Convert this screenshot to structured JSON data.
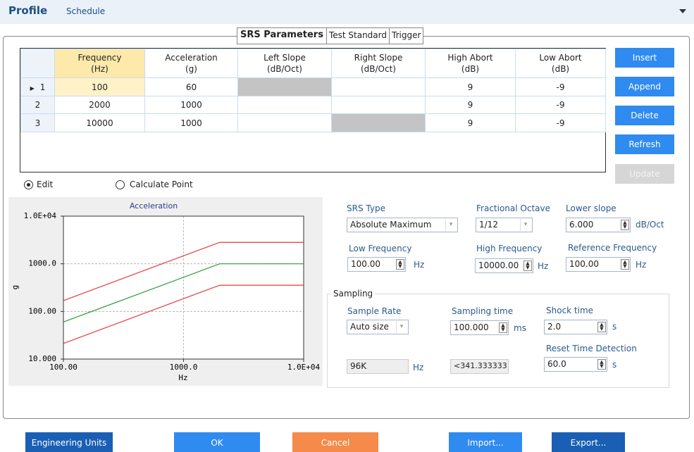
{
  "header": {
    "title": "Profile",
    "tab": "Schedule"
  },
  "tabs": [
    "SRS Parameters",
    "Test Standard",
    "Trigger"
  ],
  "table": {
    "columns": [
      {
        "name": "Frequency",
        "unit": "(Hz)"
      },
      {
        "name": "Acceleration",
        "unit": "(g)"
      },
      {
        "name": "Left Slope",
        "unit": "(dB/Oct)"
      },
      {
        "name": "Right Slope",
        "unit": "(dB/Oct)"
      },
      {
        "name": "High Abort",
        "unit": "(dB)"
      },
      {
        "name": "Low Abort",
        "unit": "(dB)"
      }
    ],
    "rows": [
      {
        "index": 1,
        "frequency": 100,
        "acceleration": 60,
        "high_abort": 9,
        "low_abort": -9
      },
      {
        "index": 2,
        "frequency": 2000,
        "acceleration": 1000,
        "high_abort": 9,
        "low_abort": -9
      },
      {
        "index": 3,
        "frequency": 10000,
        "acceleration": 1000,
        "high_abort": 9,
        "low_abort": -9
      }
    ]
  },
  "side_buttons": [
    "Insert",
    "Append",
    "Delete",
    "Refresh",
    "Update"
  ],
  "modes": [
    "Edit",
    "Calculate Point"
  ],
  "chart_data": {
    "type": "line",
    "title": "Acceleration",
    "x_label": "Hz",
    "y_label": "g",
    "log_x": true,
    "log_y": true,
    "grid": true,
    "x": [
      100,
      2000,
      10000
    ],
    "series": [
      {
        "color": "#e53935",
        "values": [
          169.2,
          2818.4,
          2818.4
        ]
      },
      {
        "color": "#2e9e3a",
        "values": [
          60,
          1000,
          1000
        ]
      },
      {
        "color": "#e53935",
        "values": [
          21.3,
          354.8,
          354.8
        ]
      }
    ],
    "xlim": [
      100,
      10000
    ],
    "ylim": [
      10,
      10000
    ],
    "xticks": [
      {
        "value": 100,
        "label": "100.00"
      },
      {
        "value": 1000,
        "label": "1000.0"
      },
      {
        "value": 10000,
        "label": "1.0E+04"
      }
    ],
    "yticks": [
      {
        "value": 10,
        "label": "10.000"
      },
      {
        "value": 100,
        "label": "100.00"
      },
      {
        "value": 1000,
        "label": "1000.0"
      },
      {
        "value": 10000,
        "label": "1.0E+04"
      }
    ]
  },
  "fields": {
    "srs_type": {
      "label": "SRS Type",
      "value": "Absolute Maximum"
    },
    "fractional_octave": {
      "label": "Fractional Octave",
      "value": "1/12"
    },
    "lower_slope": {
      "label": "Lower slope",
      "value": "6.000",
      "unit": "dB/Oct"
    },
    "low_frequency": {
      "label": "Low Frequency",
      "value": "100.00",
      "unit": "Hz"
    },
    "high_frequency": {
      "label": "High Frequency",
      "value": "10000.00",
      "unit": "Hz"
    },
    "reference_frequency": {
      "label": "Reference Frequency",
      "value": "100.00",
      "unit": "Hz"
    }
  },
  "sampling": {
    "title": "Sampling",
    "sample_rate": {
      "label": "Sample Rate",
      "value": "Auto size"
    },
    "sampling_time": {
      "label": "Sampling time",
      "value": "100.000",
      "unit": "ms"
    },
    "shock_time": {
      "label": "Shock time",
      "value": "2.0",
      "unit": "s"
    },
    "reset_time": {
      "label": "Reset Time Detection",
      "value": "60.0",
      "unit": "s"
    },
    "rate_value": {
      "value": "96K",
      "unit": "Hz"
    },
    "time_value": "<341.333333"
  },
  "bottom_buttons": [
    "Engineering Units",
    "OK",
    "Cancel",
    "Import...",
    "Export..."
  ]
}
